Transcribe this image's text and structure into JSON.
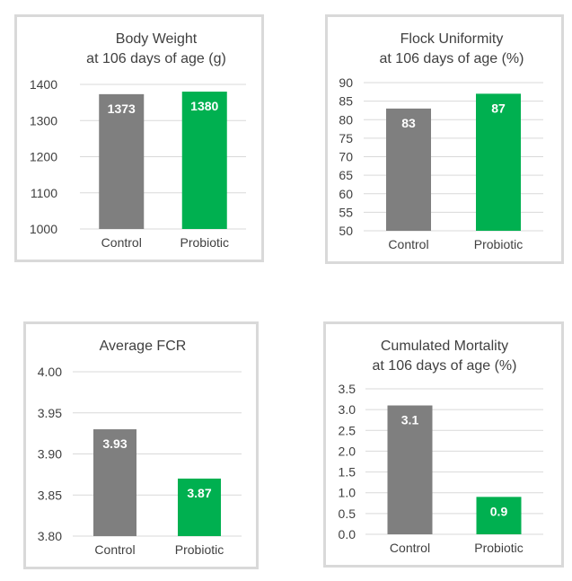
{
  "chart_data": [
    {
      "type": "bar",
      "title": "Body Weight",
      "subtitle": "at 106 days of age (g)",
      "categories": [
        "Control",
        "Probiotic"
      ],
      "values": [
        1373,
        1380
      ],
      "data_labels": [
        "1373",
        "1380"
      ],
      "ylim": [
        1000,
        1400
      ],
      "yticks": [
        1000,
        1100,
        1200,
        1300,
        1400
      ],
      "ytick_labels": [
        "1000",
        "1100",
        "1200",
        "1300",
        "1400"
      ],
      "colors": [
        "#7f7f7f",
        "#00b050"
      ],
      "grid": true
    },
    {
      "type": "bar",
      "title": "Flock Uniformity",
      "subtitle": "at 106 days of age (%)",
      "categories": [
        "Control",
        "Probiotic"
      ],
      "values": [
        83,
        87
      ],
      "data_labels": [
        "83",
        "87"
      ],
      "ylim": [
        50,
        90
      ],
      "yticks": [
        50,
        55,
        60,
        65,
        70,
        75,
        80,
        85,
        90
      ],
      "ytick_labels": [
        "50",
        "55",
        "60",
        "65",
        "70",
        "75",
        "80",
        "85",
        "90"
      ],
      "colors": [
        "#7f7f7f",
        "#00b050"
      ],
      "grid": true
    },
    {
      "type": "bar",
      "title": "Average FCR",
      "subtitle": "",
      "categories": [
        "Control",
        "Probiotic"
      ],
      "values": [
        3.93,
        3.87
      ],
      "data_labels": [
        "3.93",
        "3.87"
      ],
      "ylim": [
        3.8,
        4.0
      ],
      "yticks": [
        3.8,
        3.85,
        3.9,
        3.95,
        4.0
      ],
      "ytick_labels": [
        "3.80",
        "3.85",
        "3.90",
        "3.95",
        "4.00"
      ],
      "colors": [
        "#7f7f7f",
        "#00b050"
      ],
      "grid": true
    },
    {
      "type": "bar",
      "title": "Cumulated Mortality",
      "subtitle": "at 106 days of age  (%)",
      "categories": [
        "Control",
        "Probiotic"
      ],
      "values": [
        3.1,
        0.9
      ],
      "data_labels": [
        "3.1",
        "0.9"
      ],
      "ylim": [
        0,
        3.5
      ],
      "yticks": [
        0,
        0.5,
        1,
        1.5,
        2,
        2.5,
        3,
        3.5
      ],
      "ytick_labels": [
        "0.0",
        "0.5",
        "1.0",
        "1.5",
        "2.0",
        "2.5",
        "3.0",
        "3.5"
      ],
      "colors": [
        "#7f7f7f",
        "#00b050"
      ],
      "grid": true
    }
  ]
}
